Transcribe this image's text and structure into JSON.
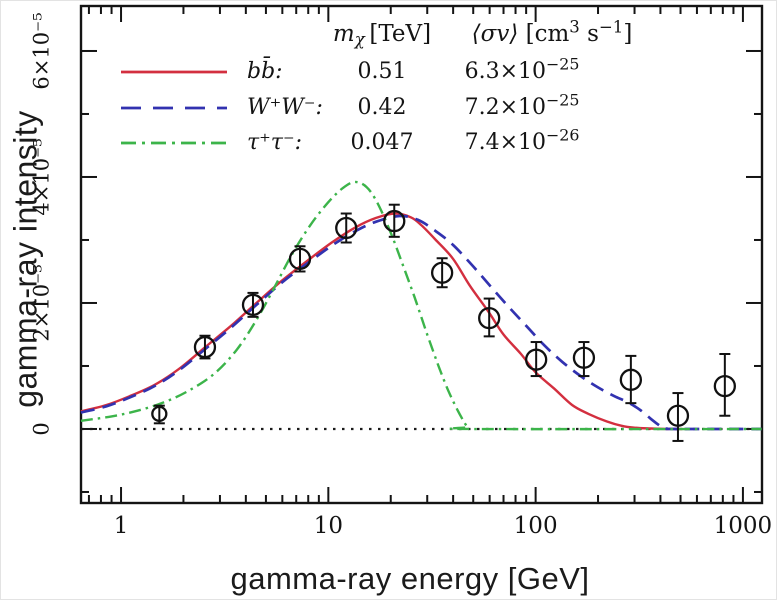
{
  "figure": {
    "bg": "#ffffff",
    "frame_color": "#141414"
  },
  "axes": {
    "x": {
      "title": "gamma-ray energy [GeV]",
      "scale": "log",
      "min": 0.641,
      "max": 1236,
      "major_ticks": [
        {
          "v": 1,
          "label": "1"
        },
        {
          "v": 10,
          "label": "10"
        },
        {
          "v": 100,
          "label": "100"
        },
        {
          "v": 1000,
          "label": "1000"
        }
      ],
      "minor_ticks": [
        0.7,
        0.8,
        0.9,
        2,
        3,
        4,
        5,
        6,
        7,
        8,
        9,
        20,
        30,
        40,
        50,
        60,
        70,
        80,
        90,
        200,
        300,
        400,
        500,
        600,
        700,
        800,
        900
      ]
    },
    "y": {
      "title": "gamma-ray intensity",
      "scale": "linear",
      "min": -1.175e-05,
      "max": 6.714e-05,
      "major_ticks": [
        {
          "v": 0,
          "label": "0"
        },
        {
          "v": 2e-05,
          "label": "2×10⁻⁵"
        },
        {
          "v": 4e-05,
          "label": "4×10⁻⁵"
        },
        {
          "v": 6e-05,
          "label": "6×10⁻⁵"
        }
      ],
      "minor_ticks": [
        -1e-05,
        1e-05,
        3e-05,
        5e-05
      ]
    }
  },
  "legend": {
    "header": {
      "mass_symbol": "m",
      "mass_sub": "χ",
      "mass_unit": " [TeV]",
      "sigmav_symbol": "⟨σv⟩",
      "sigmav_pre": " [cm",
      "sigmav_sup1": "3",
      "sigmav_mid": " s",
      "sigmav_sup2": "−1",
      "sigmav_post": "]"
    },
    "rows": [
      {
        "name": "bb-bar",
        "label": "bb̄:",
        "mass": "0.51",
        "sigmav_base": "6.3×10",
        "sigmav_exp": "−25",
        "color": "#d32f3f",
        "legend_dash": "",
        "plot_dash": ""
      },
      {
        "name": "w-plus-w-minus",
        "label": "W⁺W⁻:",
        "mass": "0.42",
        "sigmav_base": "7.2×10",
        "sigmav_exp": "−25",
        "color": "#3232b0",
        "legend_dash": "20 12",
        "plot_dash": "14 8"
      },
      {
        "name": "tau-plus-tau-minus",
        "label": "τ⁺τ⁻:",
        "mass": "0.047",
        "sigmav_base": "7.4×10",
        "sigmav_exp": "−26",
        "color": "#3cb44a",
        "legend_dash": "15 6 3 6",
        "plot_dash": "12 5 2.5 5"
      }
    ]
  },
  "chart_data": {
    "type": "line",
    "title": "",
    "xlabel": "gamma-ray energy [GeV]",
    "ylabel": "gamma-ray intensity",
    "x_scale": "log",
    "xlim": [
      0.641,
      1236
    ],
    "ylim": [
      -1.175e-05,
      6.714e-05
    ],
    "grid": false,
    "legend_position": "upper-left-inside",
    "zero_line": {
      "y": 0,
      "style": "dotted",
      "color": "#1a1a1a"
    },
    "series": [
      {
        "name": "bb̄",
        "m_chi_TeV": 0.51,
        "sigma_v_cm3_s": "6.3e-25",
        "color": "#d32f3f",
        "style": "solid",
        "points": [
          [
            0.64,
            2.8e-06
          ],
          [
            0.85,
            3.8e-06
          ],
          [
            1.1,
            5.2e-06
          ],
          [
            1.45,
            7e-06
          ],
          [
            1.9,
            9.5e-06
          ],
          [
            2.55,
            1.3e-05
          ],
          [
            3.4,
            1.64e-05
          ],
          [
            4.5,
            2e-05
          ],
          [
            6,
            2.36e-05
          ],
          [
            8,
            2.68e-05
          ],
          [
            10.5,
            2.97e-05
          ],
          [
            13.5,
            3.2e-05
          ],
          [
            17,
            3.35e-05
          ],
          [
            21,
            3.42e-05
          ],
          [
            25,
            3.36e-05
          ],
          [
            28,
            3.24e-05
          ],
          [
            33,
            3e-05
          ],
          [
            40,
            2.7e-05
          ],
          [
            48,
            2.28e-05
          ],
          [
            59,
            1.87e-05
          ],
          [
            70,
            1.5e-05
          ],
          [
            85,
            1.19e-05
          ],
          [
            100,
            9e-06
          ],
          [
            123,
            6.4e-06
          ],
          [
            150,
            3.8e-06
          ],
          [
            180,
            2.4e-06
          ],
          [
            220,
            1.2e-06
          ],
          [
            260,
            5e-07
          ],
          [
            300,
            2e-07
          ],
          [
            360,
            8e-08
          ],
          [
            430,
            2e-08
          ],
          [
            510,
            0
          ]
        ]
      },
      {
        "name": "W⁺W⁻",
        "m_chi_TeV": 0.42,
        "sigma_v_cm3_s": "7.2e-25",
        "color": "#3232b0",
        "style": "dashed",
        "points": [
          [
            0.64,
            2.6e-06
          ],
          [
            0.85,
            3.6e-06
          ],
          [
            1.1,
            5e-06
          ],
          [
            1.45,
            6.8e-06
          ],
          [
            1.9,
            9.3e-06
          ],
          [
            2.55,
            1.27e-05
          ],
          [
            3.4,
            1.61e-05
          ],
          [
            4.5,
            1.97e-05
          ],
          [
            6,
            2.33e-05
          ],
          [
            8,
            2.64e-05
          ],
          [
            10.5,
            2.92e-05
          ],
          [
            13.5,
            3.14e-05
          ],
          [
            17,
            3.29e-05
          ],
          [
            22,
            3.38e-05
          ],
          [
            27,
            3.32e-05
          ],
          [
            33,
            3.14e-05
          ],
          [
            40,
            2.92e-05
          ],
          [
            50,
            2.58e-05
          ],
          [
            60,
            2.28e-05
          ],
          [
            75,
            1.92e-05
          ],
          [
            90,
            1.64e-05
          ],
          [
            110,
            1.33e-05
          ],
          [
            135,
            1.06e-05
          ],
          [
            165,
            8.4e-06
          ],
          [
            200,
            6.6e-06
          ],
          [
            240,
            5.2e-06
          ],
          [
            280,
            4.2e-06
          ],
          [
            320,
            3e-06
          ],
          [
            360,
            1.6e-06
          ],
          [
            390,
            7e-07
          ],
          [
            410,
            2.5e-07
          ],
          [
            430,
            6e-08
          ],
          [
            470,
            0
          ],
          [
            1230,
            0
          ]
        ]
      },
      {
        "name": "τ⁺τ⁻",
        "m_chi_TeV": 0.047,
        "sigma_v_cm3_s": "7.4e-26",
        "color": "#3cb44a",
        "style": "dash-dot",
        "points": [
          [
            0.64,
            1.3e-06
          ],
          [
            0.9,
            2e-06
          ],
          [
            1.2,
            2.9e-06
          ],
          [
            1.6,
            4.2e-06
          ],
          [
            2.1,
            6e-06
          ],
          [
            2.8,
            8.7e-06
          ],
          [
            3.6,
            1.25e-05
          ],
          [
            4.5,
            1.73e-05
          ],
          [
            5.5,
            2.25e-05
          ],
          [
            6.7,
            2.78e-05
          ],
          [
            8.2,
            3.24e-05
          ],
          [
            10,
            3.6e-05
          ],
          [
            11.7,
            3.82e-05
          ],
          [
            13.4,
            3.92e-05
          ],
          [
            15.3,
            3.84e-05
          ],
          [
            17.3,
            3.58e-05
          ],
          [
            19.8,
            3.15e-05
          ],
          [
            22.5,
            2.67e-05
          ],
          [
            26,
            2.1e-05
          ],
          [
            30,
            1.5e-05
          ],
          [
            34,
            1e-05
          ],
          [
            38,
            6e-06
          ],
          [
            42,
            3e-06
          ],
          [
            45,
            1.2e-06
          ],
          [
            47,
            3e-07
          ],
          [
            49,
            0
          ],
          [
            1230,
            0
          ]
        ]
      }
    ],
    "data_points": {
      "marker": "open-circle",
      "color": "#111111",
      "values": [
        {
          "x": 1.53,
          "y": 2.4e-06,
          "err_plus": 1.3e-06,
          "err_minus": 1.5e-06,
          "r": 7
        },
        {
          "x": 2.54,
          "y": 1.3e-05,
          "err_plus": 1.8e-06,
          "err_minus": 1.8e-06
        },
        {
          "x": 4.33,
          "y": 1.97e-05,
          "err_plus": 1.9e-06,
          "err_minus": 1.9e-06
        },
        {
          "x": 7.3,
          "y": 2.7e-05,
          "err_plus": 2e-06,
          "err_minus": 2e-06
        },
        {
          "x": 12.2,
          "y": 3.19e-05,
          "err_plus": 2.3e-06,
          "err_minus": 2.3e-06
        },
        {
          "x": 20.8,
          "y": 3.3e-05,
          "err_plus": 2.6e-06,
          "err_minus": 2.5e-06
        },
        {
          "x": 35.4,
          "y": 2.48e-05,
          "err_plus": 2.3e-06,
          "err_minus": 2.3e-06
        },
        {
          "x": 59.7,
          "y": 1.76e-05,
          "err_plus": 3.1e-06,
          "err_minus": 2.9e-06
        },
        {
          "x": 100.6,
          "y": 1.1e-05,
          "err_plus": 2.8e-06,
          "err_minus": 2.6e-06
        },
        {
          "x": 171,
          "y": 1.13e-05,
          "err_plus": 2.5e-06,
          "err_minus": 2.9e-06
        },
        {
          "x": 288,
          "y": 7.8e-06,
          "err_plus": 3.8e-06,
          "err_minus": 3.7e-06
        },
        {
          "x": 486,
          "y": 2.1e-06,
          "err_plus": 3.6e-06,
          "err_minus": 4e-06
        },
        {
          "x": 818,
          "y": 6.8e-06,
          "err_plus": 5.1e-06,
          "err_minus": 4.7e-06
        }
      ]
    }
  }
}
